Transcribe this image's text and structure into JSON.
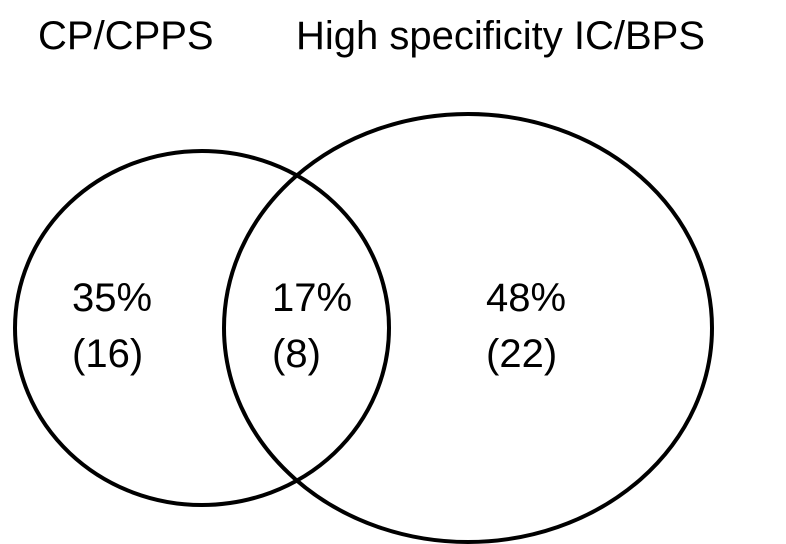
{
  "sets": {
    "left": {
      "label": "CP/CPPS"
    },
    "right": {
      "label": "High specificity IC/BPS"
    }
  },
  "regions": {
    "left_only": {
      "percent": "35%",
      "count": "(16)"
    },
    "overlap": {
      "percent": "17%",
      "count": "(8)"
    },
    "right_only": {
      "percent": "48%",
      "count": "(22)"
    }
  }
}
